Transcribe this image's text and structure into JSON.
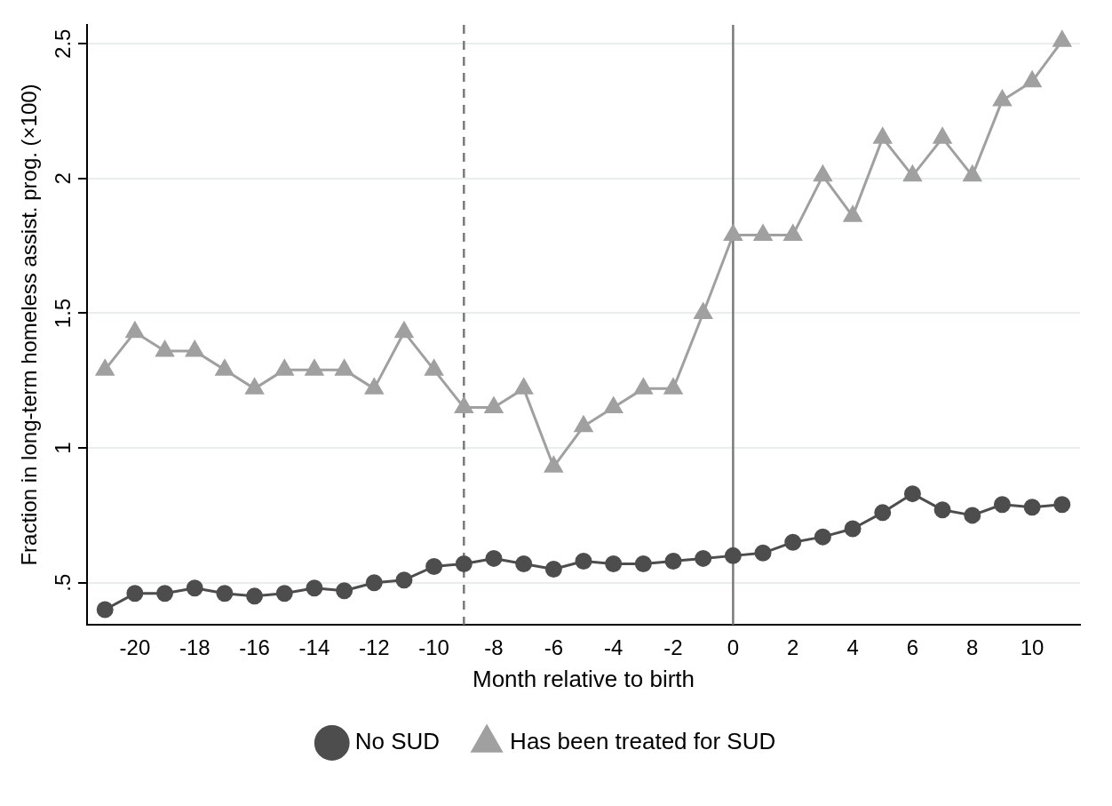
{
  "chart_data": {
    "type": "line",
    "xlabel": "Month relative to birth",
    "ylabel": "Fraction in long-term homeless assist. prog. (×100)",
    "x": [
      -21,
      -20,
      -19,
      -18,
      -17,
      -16,
      -15,
      -14,
      -13,
      -12,
      -11,
      -10,
      -9,
      -8,
      -7,
      -6,
      -5,
      -4,
      -3,
      -2,
      -1,
      0,
      1,
      2,
      3,
      4,
      5,
      6,
      7,
      8,
      9,
      10,
      11
    ],
    "series": [
      {
        "name": "No SUD",
        "color": "#4d4d4d",
        "marker": "circle",
        "values": [
          0.4,
          0.46,
          0.46,
          0.48,
          0.46,
          0.45,
          0.46,
          0.48,
          0.47,
          0.5,
          0.51,
          0.56,
          0.57,
          0.59,
          0.57,
          0.55,
          0.58,
          0.57,
          0.57,
          0.58,
          0.59,
          0.6,
          0.61,
          0.65,
          0.67,
          0.7,
          0.76,
          0.83,
          0.77,
          0.75,
          0.79,
          0.78,
          0.79
        ]
      },
      {
        "name": "Has been treated for SUD",
        "color": "#a0a0a0",
        "marker": "triangle",
        "values": [
          1.29,
          1.43,
          1.36,
          1.36,
          1.29,
          1.22,
          1.29,
          1.29,
          1.29,
          1.22,
          1.43,
          1.29,
          1.15,
          1.15,
          1.22,
          0.93,
          1.08,
          1.15,
          1.22,
          1.22,
          1.5,
          1.79,
          1.79,
          1.79,
          2.01,
          1.86,
          2.15,
          2.01,
          2.15,
          2.01,
          2.29,
          2.36,
          2.51
        ]
      }
    ],
    "xlim": [
      -21.6,
      11.6
    ],
    "xticks": [
      -20,
      -18,
      -16,
      -14,
      -12,
      -10,
      -8,
      -6,
      -4,
      -2,
      0,
      2,
      4,
      6,
      8,
      10
    ],
    "ylim": [
      0.344,
      2.57
    ],
    "yticks": [
      {
        "value": 0.5,
        "label": ".5"
      },
      1,
      1.5,
      2,
      2.5
    ],
    "ref_lines": [
      {
        "axis": "x",
        "value": -9,
        "color": "#7a7a7a",
        "line_style": "dashed"
      },
      {
        "axis": "x",
        "value": 0,
        "color": "#7a7a7a",
        "line_style": "solid"
      }
    ],
    "grid": "y",
    "legend": "bottom"
  }
}
